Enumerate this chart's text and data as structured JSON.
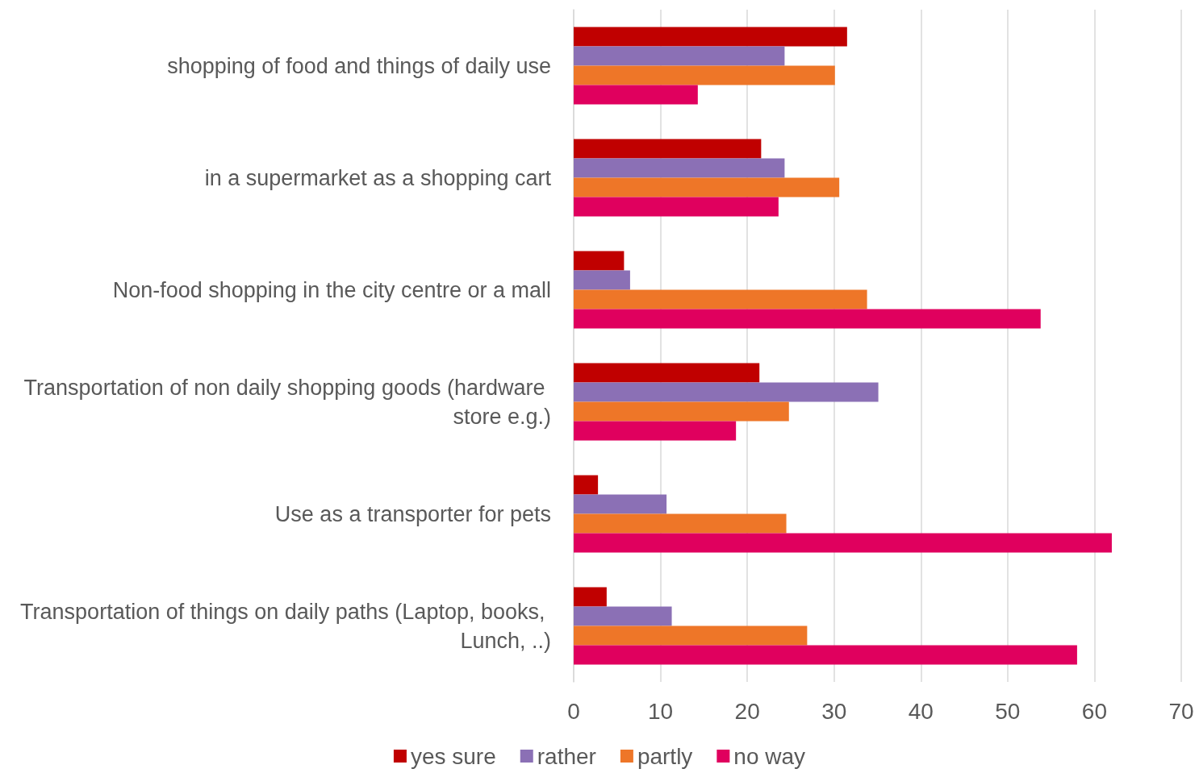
{
  "chart_data": {
    "type": "bar",
    "orientation": "horizontal",
    "categories": [
      "shopping of food and things of daily use",
      "in a supermarket as a shopping cart",
      "Non-food shopping in the city centre or a mall",
      "Transportation of non daily shopping goods (hardware store e.g.)",
      "Use as a transporter for pets",
      "Transportation of things on daily paths (Laptop, books, Lunch, ..)"
    ],
    "series": [
      {
        "name": "yes sure",
        "color": "#c00000",
        "values": [
          31.5,
          21.6,
          5.8,
          21.4,
          2.8,
          3.8
        ]
      },
      {
        "name": "rather",
        "color": "#8b70b5",
        "values": [
          24.3,
          24.3,
          6.5,
          35.1,
          10.7,
          11.3
        ]
      },
      {
        "name": "partly",
        "color": "#ee7628",
        "values": [
          30.1,
          30.6,
          33.8,
          24.8,
          24.5,
          26.9
        ]
      },
      {
        "name": "no way",
        "color": "#e0005e",
        "values": [
          14.3,
          23.6,
          53.8,
          18.7,
          62.0,
          58.0
        ]
      }
    ],
    "xlim": [
      0,
      70
    ],
    "xticks": [
      0,
      10,
      20,
      30,
      40,
      50,
      60,
      70
    ],
    "grid": "x",
    "legend": "bottom"
  }
}
